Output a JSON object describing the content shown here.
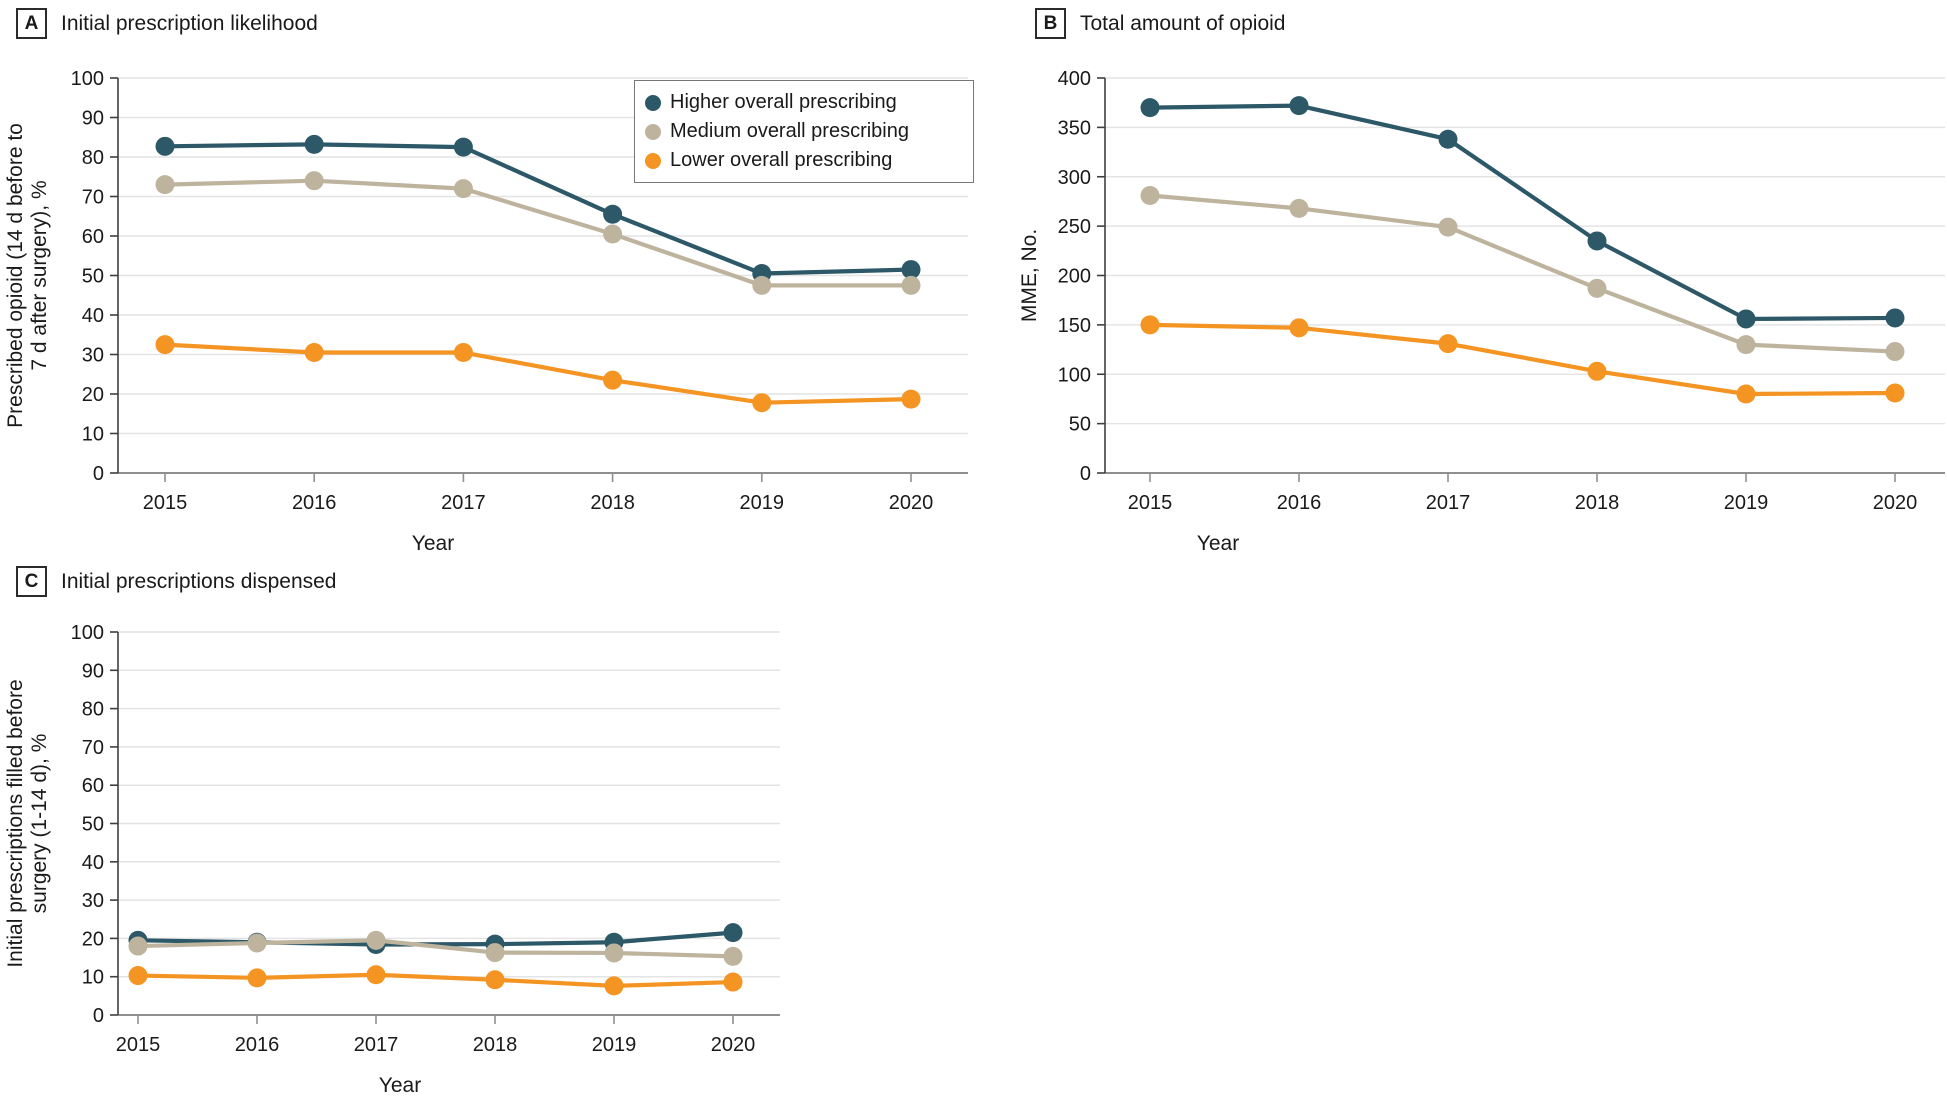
{
  "figure": {
    "panels": [
      {
        "letter": "A",
        "title": "Initial prescription likelihood"
      },
      {
        "letter": "B",
        "title": "Total amount of opioid"
      },
      {
        "letter": "C",
        "title": "Initial prescriptions dispensed"
      }
    ]
  },
  "legend": {
    "position": "top-right-panel-A",
    "items": [
      {
        "label": "Higher overall prescribing",
        "color": "#2C5868"
      },
      {
        "label": "Medium overall prescribing",
        "color": "#BEB49E"
      },
      {
        "label": "Lower overall prescribing",
        "color": "#F49422"
      }
    ]
  },
  "style_colors": {
    "gridline": "#E4E4E4",
    "baseline": "#8F8F8F",
    "y_axis": "#3F3F3F",
    "text": "#1A1A1A"
  },
  "chart_data": [
    {
      "id": "A",
      "type": "line",
      "title": "Initial prescription likelihood",
      "xlabel": "Year",
      "ylabel": "Prescribed opioid (14 d before to\n7 d after surgery), %",
      "x": [
        2015,
        2016,
        2017,
        2018,
        2019,
        2020
      ],
      "ylim": [
        0,
        100
      ],
      "yticks": [
        0,
        10,
        20,
        30,
        40,
        50,
        60,
        70,
        80,
        90,
        100
      ],
      "grid": true,
      "legend_position": "top-right",
      "series": [
        {
          "name": "Higher overall prescribing",
          "color": "#2C5868",
          "values": [
            82.7,
            83.2,
            82.5,
            65.5,
            50.5,
            51.5
          ]
        },
        {
          "name": "Medium overall prescribing",
          "color": "#BEB49E",
          "values": [
            73.0,
            74.0,
            72.0,
            60.5,
            47.5,
            47.5
          ]
        },
        {
          "name": "Lower overall prescribing",
          "color": "#F49422",
          "values": [
            32.5,
            30.5,
            30.5,
            23.5,
            17.8,
            18.7
          ]
        }
      ]
    },
    {
      "id": "B",
      "type": "line",
      "title": "Total amount of opioid",
      "xlabel": "Year",
      "ylabel": "MME, No.",
      "x": [
        2015,
        2016,
        2017,
        2018,
        2019,
        2020
      ],
      "ylim": [
        0,
        400
      ],
      "yticks": [
        0,
        50,
        100,
        150,
        200,
        250,
        300,
        350,
        400
      ],
      "grid": true,
      "legend_position": "none",
      "series": [
        {
          "name": "Higher overall prescribing",
          "color": "#2C5868",
          "values": [
            370,
            372,
            338,
            235,
            156,
            157
          ]
        },
        {
          "name": "Medium overall prescribing",
          "color": "#BEB49E",
          "values": [
            281,
            268,
            249,
            187,
            130,
            123
          ]
        },
        {
          "name": "Lower overall prescribing",
          "color": "#F49422",
          "values": [
            150,
            147,
            131,
            103,
            80,
            81
          ]
        }
      ]
    },
    {
      "id": "C",
      "type": "line",
      "title": "Initial prescriptions dispensed",
      "xlabel": "Year",
      "ylabel": "Initial prescriptions filled before\nsurgery (1-14 d), %",
      "x": [
        2015,
        2016,
        2017,
        2018,
        2019,
        2020
      ],
      "ylim": [
        0,
        100
      ],
      "yticks": [
        0,
        10,
        20,
        30,
        40,
        50,
        60,
        70,
        80,
        90,
        100
      ],
      "grid": true,
      "legend_position": "none",
      "series": [
        {
          "name": "Higher overall prescribing",
          "color": "#2C5868",
          "values": [
            19.5,
            19.0,
            18.4,
            18.5,
            19.0,
            21.5
          ]
        },
        {
          "name": "Medium overall prescribing",
          "color": "#BEB49E",
          "values": [
            18.0,
            18.8,
            19.5,
            16.3,
            16.2,
            15.3
          ]
        },
        {
          "name": "Lower overall prescribing",
          "color": "#F49422",
          "values": [
            10.3,
            9.7,
            10.5,
            9.2,
            7.6,
            8.6
          ]
        }
      ]
    }
  ]
}
